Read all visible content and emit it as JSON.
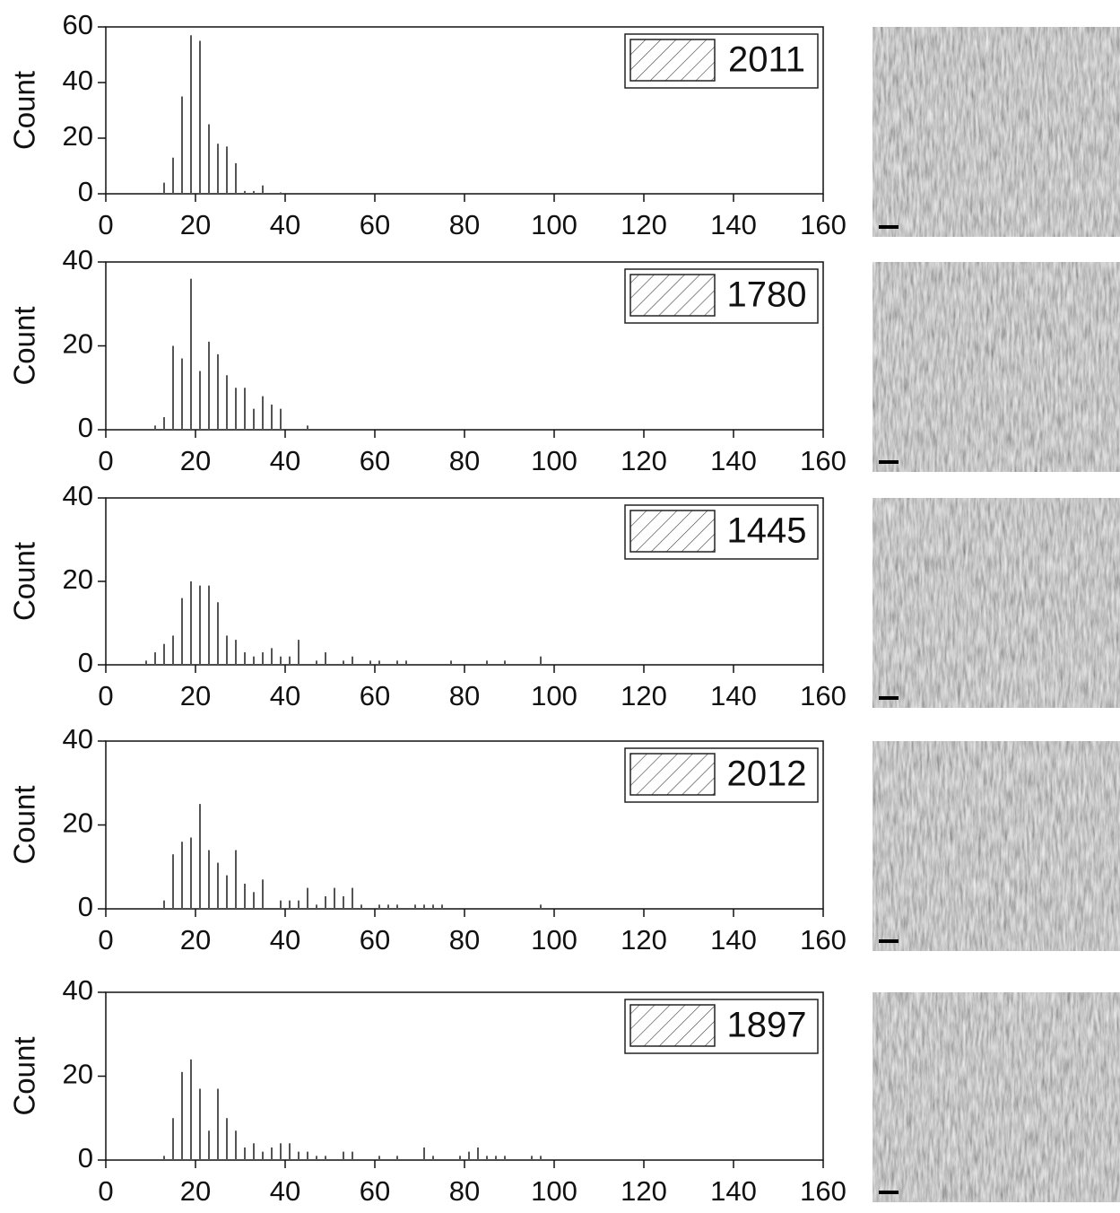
{
  "chart_data": [
    {
      "type": "bar",
      "ylabel": "Count",
      "xlim": [
        0,
        160
      ],
      "xticks": [
        0,
        20,
        40,
        60,
        80,
        100,
        120,
        140,
        160
      ],
      "ylim": [
        0,
        60
      ],
      "yticks": [
        0,
        20,
        40,
        60
      ],
      "x": [
        13,
        15,
        17,
        19,
        21,
        23,
        25,
        27,
        29,
        31,
        33,
        35,
        39
      ],
      "series": [
        {
          "name": "2011",
          "color": "#555555",
          "values": [
            4,
            13,
            35,
            57,
            55,
            25,
            18,
            17,
            11,
            1,
            1,
            3,
            0.5
          ]
        }
      ]
    },
    {
      "type": "bar",
      "ylabel": "Count",
      "xlim": [
        0,
        160
      ],
      "xticks": [
        0,
        20,
        40,
        60,
        80,
        100,
        120,
        140,
        160
      ],
      "ylim": [
        0,
        40
      ],
      "yticks": [
        0,
        20,
        40
      ],
      "x": [
        11,
        13,
        15,
        17,
        19,
        21,
        23,
        25,
        27,
        29,
        31,
        33,
        35,
        37,
        39,
        45
      ],
      "series": [
        {
          "name": "1780",
          "color": "#555555",
          "values": [
            1,
            3,
            20,
            17,
            36,
            14,
            21,
            18,
            13,
            10,
            10,
            5,
            8,
            6,
            5,
            1
          ]
        }
      ]
    },
    {
      "type": "bar",
      "ylabel": "Count",
      "xlim": [
        0,
        160
      ],
      "xticks": [
        0,
        20,
        40,
        60,
        80,
        100,
        120,
        140,
        160
      ],
      "ylim": [
        0,
        40
      ],
      "yticks": [
        0,
        20,
        40
      ],
      "x": [
        9,
        11,
        13,
        15,
        17,
        19,
        21,
        23,
        25,
        27,
        29,
        31,
        33,
        35,
        37,
        39,
        41,
        43,
        47,
        49,
        53,
        55,
        59,
        61,
        65,
        67,
        77,
        85,
        89,
        97
      ],
      "series": [
        {
          "name": "1445",
          "color": "#555555",
          "values": [
            1,
            3,
            5,
            7,
            16,
            20,
            19,
            19,
            15,
            7,
            6,
            3,
            2,
            3,
            4,
            2,
            2,
            6,
            1,
            3,
            1,
            2,
            1,
            1,
            1,
            1,
            1,
            1,
            1,
            2
          ]
        }
      ]
    },
    {
      "type": "bar",
      "ylabel": "Count",
      "xlim": [
        0,
        160
      ],
      "xticks": [
        0,
        20,
        40,
        60,
        80,
        100,
        120,
        140,
        160
      ],
      "ylim": [
        0,
        40
      ],
      "yticks": [
        0,
        20,
        40
      ],
      "x": [
        13,
        15,
        17,
        19,
        21,
        23,
        25,
        27,
        29,
        31,
        33,
        35,
        39,
        41,
        43,
        45,
        47,
        49,
        51,
        53,
        55,
        57,
        61,
        63,
        65,
        69,
        71,
        73,
        75,
        97
      ],
      "series": [
        {
          "name": "2012",
          "color": "#555555",
          "values": [
            2,
            13,
            16,
            17,
            25,
            14,
            11,
            8,
            14,
            6,
            4,
            7,
            2,
            2,
            2,
            5,
            1,
            3,
            5,
            3,
            5,
            1,
            1,
            1,
            1,
            1,
            1,
            1,
            1,
            1
          ]
        }
      ]
    },
    {
      "type": "bar",
      "ylabel": "Count",
      "xlim": [
        0,
        160
      ],
      "xticks": [
        0,
        20,
        40,
        60,
        80,
        100,
        120,
        140,
        160
      ],
      "ylim": [
        0,
        40
      ],
      "yticks": [
        0,
        20,
        40
      ],
      "x": [
        13,
        15,
        17,
        19,
        21,
        23,
        25,
        27,
        29,
        31,
        33,
        35,
        37,
        39,
        41,
        43,
        45,
        47,
        49,
        53,
        55,
        61,
        65,
        71,
        73,
        79,
        81,
        83,
        85,
        87,
        89,
        95,
        97
      ],
      "series": [
        {
          "name": "1897",
          "color": "#555555",
          "values": [
            1,
            10,
            21,
            24,
            17,
            7,
            17,
            10,
            7,
            3,
            4,
            2,
            3,
            4,
            4,
            2,
            2,
            1,
            1,
            2,
            2,
            1,
            1,
            3,
            1,
            1,
            2,
            3,
            1,
            1,
            1,
            1,
            1
          ]
        }
      ]
    }
  ]
}
